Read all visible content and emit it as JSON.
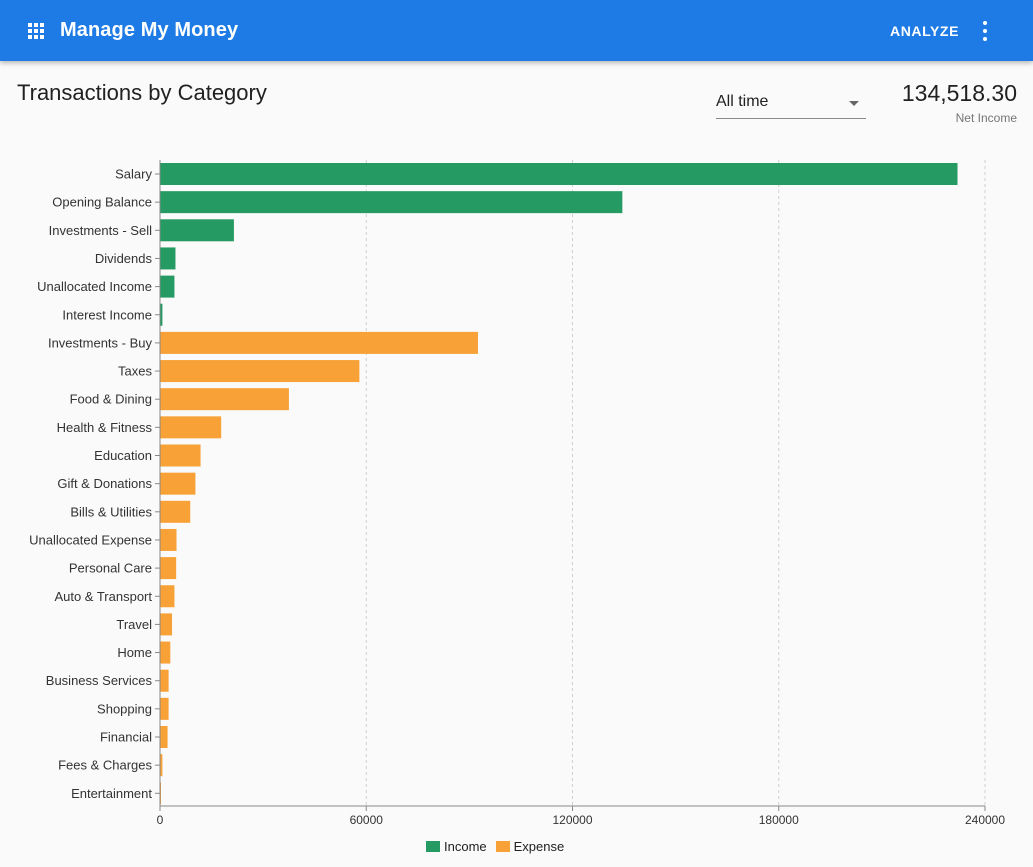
{
  "app": {
    "title": "Manage My Money",
    "apps_icon": "apps-grid-icon",
    "analyze_label": "ANALYZE",
    "more_icon": "more-vert-icon",
    "bar_color": "#1e7be6"
  },
  "page": {
    "title": "Transactions by Category",
    "period": {
      "selected": "All time"
    },
    "net_income": {
      "value": "134,518.30",
      "label": "Net Income"
    }
  },
  "chart_data": {
    "type": "bar",
    "orientation": "horizontal",
    "title": "Transactions by Category",
    "xlim": [
      0,
      240000
    ],
    "xticks": [
      "0",
      "60000",
      "120000",
      "180000",
      "240000"
    ],
    "grid": "vertical-dashed",
    "legend": [
      {
        "name": "Income",
        "color": "#259b63"
      },
      {
        "name": "Expense",
        "color": "#f7a136"
      }
    ],
    "legend_position": "bottom-center",
    "categories": [
      {
        "label": "Salary",
        "value": 232000,
        "series": "Income"
      },
      {
        "label": "Opening Balance",
        "value": 134500,
        "series": "Income"
      },
      {
        "label": "Investments - Sell",
        "value": 21500,
        "series": "Income"
      },
      {
        "label": "Dividends",
        "value": 4500,
        "series": "Income"
      },
      {
        "label": "Unallocated Income",
        "value": 4200,
        "series": "Income"
      },
      {
        "label": "Interest Income",
        "value": 700,
        "series": "Income"
      },
      {
        "label": "Investments - Buy",
        "value": 92500,
        "series": "Expense"
      },
      {
        "label": "Taxes",
        "value": 58000,
        "series": "Expense"
      },
      {
        "label": "Food & Dining",
        "value": 37500,
        "series": "Expense"
      },
      {
        "label": "Health & Fitness",
        "value": 17800,
        "series": "Expense"
      },
      {
        "label": "Education",
        "value": 11800,
        "series": "Expense"
      },
      {
        "label": "Gift & Donations",
        "value": 10300,
        "series": "Expense"
      },
      {
        "label": "Bills & Utilities",
        "value": 8800,
        "series": "Expense"
      },
      {
        "label": "Unallocated Expense",
        "value": 4800,
        "series": "Expense"
      },
      {
        "label": "Personal Care",
        "value": 4700,
        "series": "Expense"
      },
      {
        "label": "Auto & Transport",
        "value": 4200,
        "series": "Expense"
      },
      {
        "label": "Travel",
        "value": 3500,
        "series": "Expense"
      },
      {
        "label": "Home",
        "value": 3000,
        "series": "Expense"
      },
      {
        "label": "Business Services",
        "value": 2500,
        "series": "Expense"
      },
      {
        "label": "Shopping",
        "value": 2500,
        "series": "Expense"
      },
      {
        "label": "Financial",
        "value": 2200,
        "series": "Expense"
      },
      {
        "label": "Fees & Charges",
        "value": 700,
        "series": "Expense"
      },
      {
        "label": "Entertainment",
        "value": 200,
        "series": "Expense"
      }
    ]
  }
}
